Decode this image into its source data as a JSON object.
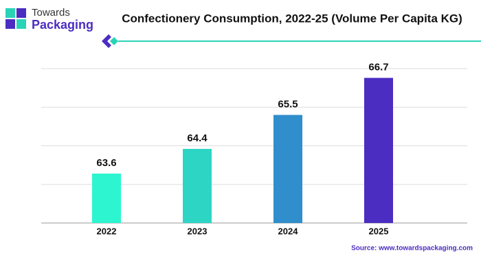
{
  "brand": {
    "line1": "Towards",
    "line2": "Packaging"
  },
  "source": "Source: www.towardspackaging.com",
  "chart_data": {
    "type": "bar",
    "title": "Confectionery Consumption, 2022-25 (Volume Per Capita KG)",
    "categories": [
      "2022",
      "2023",
      "2024",
      "2025"
    ],
    "values": [
      63.6,
      64.4,
      65.5,
      66.7
    ],
    "colors": [
      "#2cf5d0",
      "#2dd5c5",
      "#2f8ecb",
      "#4b2dc1"
    ],
    "ylim": [
      62,
      67
    ],
    "yticks": [
      62,
      63.25,
      64.5,
      65.75,
      67
    ],
    "grid": true
  }
}
